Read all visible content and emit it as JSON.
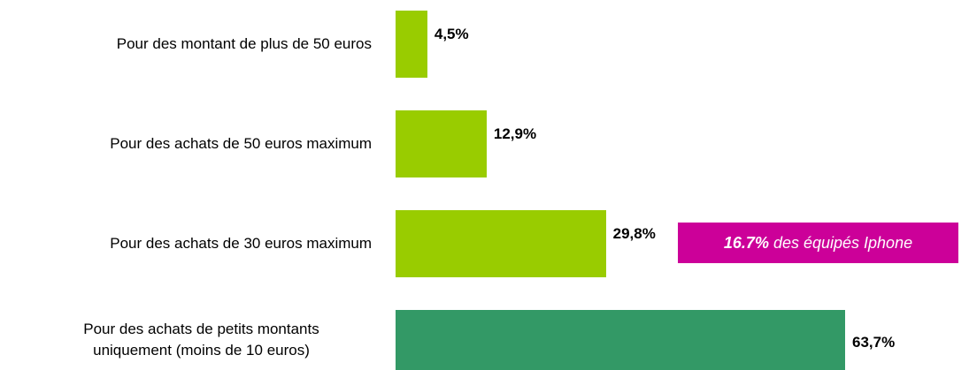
{
  "chart_data": {
    "type": "bar",
    "orientation": "horizontal",
    "categories": [
      "Pour des montant de plus de 50 euros",
      "Pour des achats de 50 euros maximum",
      "Pour des achats de 30 euros maximum",
      "Pour des achats de petits montants uniquement (moins de 10 euros)"
    ],
    "values": [
      4.5,
      12.9,
      29.8,
      63.7
    ],
    "value_labels": [
      "4,5%",
      "12,9%",
      "29,8%",
      "63,7%"
    ],
    "colors": [
      "#99cc00",
      "#99cc00",
      "#99cc00",
      "#339966"
    ],
    "annotation": {
      "bold": "16.7%",
      "text": " des équipés Iphone",
      "color": "#cc0099"
    }
  }
}
